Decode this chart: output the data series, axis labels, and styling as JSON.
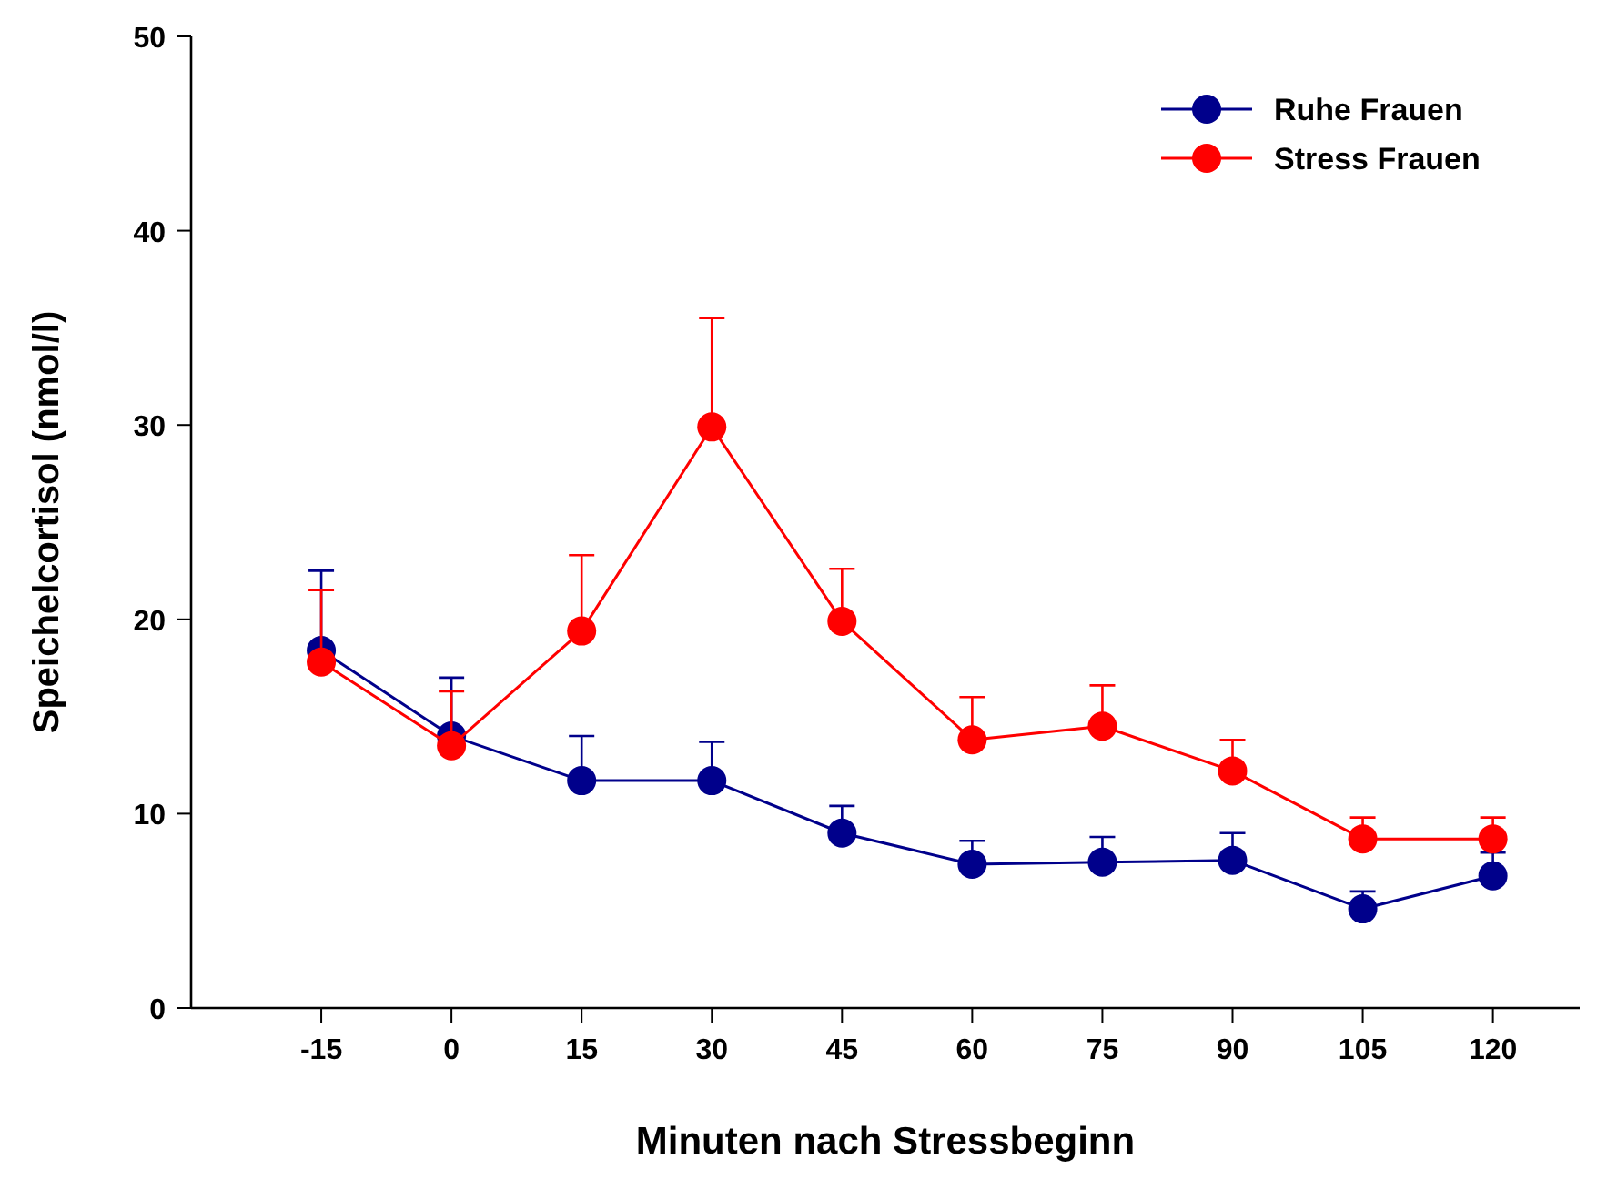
{
  "chart_data": {
    "type": "line",
    "xlabel": "Minuten nach Stressbeginn",
    "ylabel": "Speichelcortisol (nmol/l)",
    "x": [
      -15,
      0,
      15,
      30,
      45,
      60,
      75,
      90,
      105,
      120
    ],
    "xlim": [
      -30,
      130
    ],
    "xticks": [
      -15,
      0,
      15,
      30,
      45,
      60,
      75,
      90,
      105,
      120
    ],
    "ylim": [
      0,
      50
    ],
    "yticks": [
      0,
      10,
      20,
      30,
      40,
      50
    ],
    "series": [
      {
        "name": "Ruhe Frauen",
        "color": "#00008b",
        "values": [
          18.4,
          14.0,
          11.7,
          11.7,
          9.0,
          7.4,
          7.5,
          7.6,
          5.1,
          6.8
        ],
        "errors": [
          [
            18.4,
            22.5
          ],
          [
            14.0,
            17.0
          ],
          [
            11.7,
            14.0
          ],
          [
            11.7,
            13.7
          ],
          [
            9.0,
            10.4
          ],
          [
            7.4,
            8.6
          ],
          [
            7.5,
            8.8
          ],
          [
            7.6,
            9.0
          ],
          [
            5.1,
            6.0
          ],
          [
            6.8,
            8.0
          ]
        ]
      },
      {
        "name": "Stress Frauen",
        "color": "#ff0000",
        "values": [
          17.8,
          13.5,
          19.4,
          29.9,
          19.9,
          13.8,
          14.5,
          12.2,
          8.7,
          8.7
        ],
        "errors": [
          [
            17.8,
            21.5
          ],
          [
            13.5,
            16.3
          ],
          [
            19.4,
            23.3
          ],
          [
            29.9,
            35.5
          ],
          [
            19.9,
            22.6
          ],
          [
            13.8,
            16.0
          ],
          [
            14.5,
            16.6
          ],
          [
            12.2,
            13.8
          ],
          [
            8.7,
            9.8
          ],
          [
            8.7,
            9.8
          ]
        ]
      }
    ],
    "marker": "circle",
    "line_style": "solid",
    "grid": false,
    "legend": "top right"
  }
}
